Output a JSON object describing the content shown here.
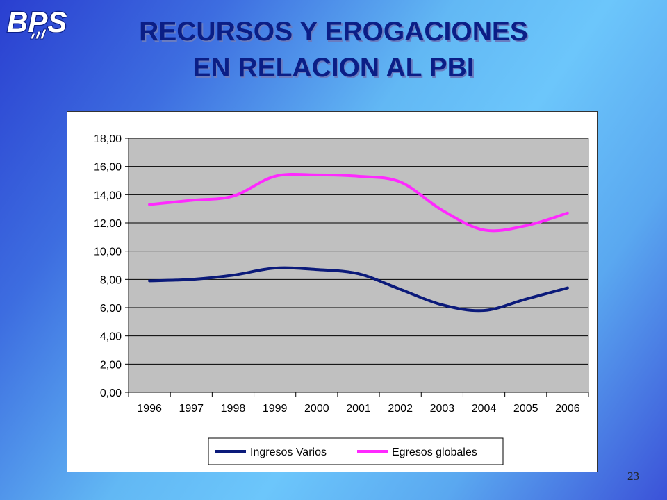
{
  "logo": {
    "text": "BPS",
    "icon": "bps-logo-icon"
  },
  "title": {
    "line1": "RECURSOS Y EROGACIONES",
    "line2": "EN RELACION AL PBI"
  },
  "page_number": "23",
  "chart_data": {
    "type": "line",
    "x": [
      "1996",
      "1997",
      "1998",
      "1999",
      "2000",
      "2001",
      "2002",
      "2003",
      "2004",
      "2005",
      "2006"
    ],
    "y_tick_labels": [
      "0,00",
      "2,00",
      "4,00",
      "6,00",
      "8,00",
      "10,00",
      "12,00",
      "14,00",
      "16,00",
      "18,00"
    ],
    "ylim": [
      0,
      18
    ],
    "grid": true,
    "legend_position": "bottom",
    "plot_background": "#c0c0c0",
    "series": [
      {
        "name": "Ingresos Varios",
        "color": "#0b1a7a",
        "values": [
          7.9,
          8.0,
          8.3,
          8.8,
          8.7,
          8.4,
          7.3,
          6.2,
          5.8,
          6.6,
          7.4
        ]
      },
      {
        "name": "Egresos globales",
        "color": "#ff29ff",
        "values": [
          13.3,
          13.6,
          13.9,
          15.3,
          15.4,
          15.3,
          14.9,
          12.9,
          11.5,
          11.8,
          12.7
        ]
      }
    ]
  }
}
